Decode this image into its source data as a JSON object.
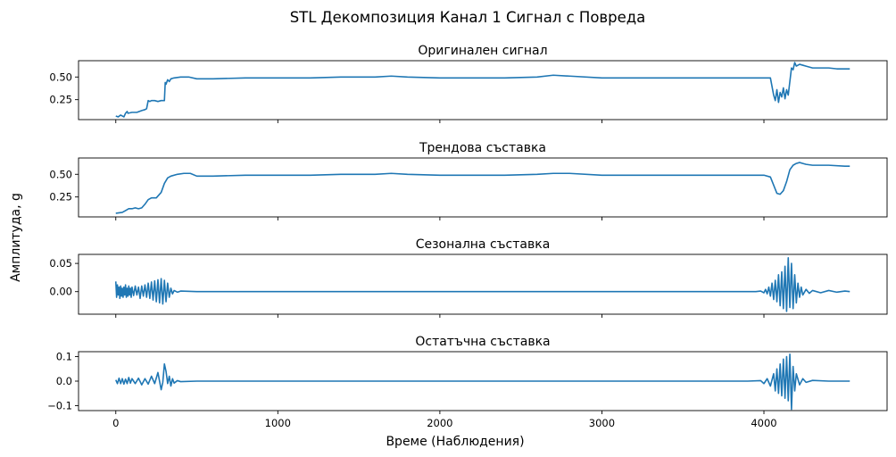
{
  "figure": {
    "title": "STL Декомпозиция Канал 1 Сигнал с Повреда",
    "ylabel": "Амплитуда, g",
    "xlabel": "Време (Наблюдения)",
    "line_color": "#1f77b4"
  },
  "chart_data": [
    {
      "type": "line",
      "title": "Оригинален сигнал",
      "xlim": [
        -230,
        4760
      ],
      "ylim": [
        0.03,
        0.68
      ],
      "yticks": [
        "0.25",
        "0.50"
      ],
      "ytick_values": [
        0.25,
        0.5
      ],
      "x": [
        0,
        15,
        30,
        50,
        60,
        70,
        75,
        100,
        130,
        160,
        180,
        190,
        200,
        210,
        220,
        240,
        260,
        280,
        300,
        305,
        310,
        320,
        330,
        340,
        360,
        400,
        450,
        500,
        600,
        800,
        1000,
        1200,
        1400,
        1600,
        1700,
        1800,
        2000,
        2200,
        2400,
        2600,
        2700,
        2800,
        3000,
        3200,
        3400,
        3600,
        3800,
        3950,
        4000,
        4040,
        4060,
        4070,
        4080,
        4090,
        4100,
        4110,
        4120,
        4130,
        4140,
        4150,
        4160,
        4170,
        4180,
        4190,
        4200,
        4220,
        4240,
        4260,
        4280,
        4300,
        4350,
        4400,
        4450,
        4500,
        4530
      ],
      "y": [
        0.07,
        0.06,
        0.08,
        0.06,
        0.1,
        0.12,
        0.1,
        0.11,
        0.11,
        0.13,
        0.14,
        0.15,
        0.24,
        0.23,
        0.24,
        0.24,
        0.23,
        0.24,
        0.24,
        0.44,
        0.42,
        0.47,
        0.45,
        0.48,
        0.49,
        0.5,
        0.5,
        0.48,
        0.48,
        0.49,
        0.49,
        0.49,
        0.5,
        0.5,
        0.51,
        0.5,
        0.49,
        0.49,
        0.49,
        0.5,
        0.52,
        0.51,
        0.49,
        0.49,
        0.49,
        0.49,
        0.49,
        0.49,
        0.49,
        0.49,
        0.3,
        0.24,
        0.36,
        0.22,
        0.33,
        0.28,
        0.38,
        0.26,
        0.36,
        0.3,
        0.45,
        0.6,
        0.58,
        0.66,
        0.62,
        0.64,
        0.63,
        0.62,
        0.61,
        0.6,
        0.6,
        0.6,
        0.59,
        0.59,
        0.59
      ]
    },
    {
      "type": "line",
      "title": "Трендова съставка",
      "xlim": [
        -230,
        4760
      ],
      "ylim": [
        0.03,
        0.68
      ],
      "yticks": [
        "0.25",
        "0.50"
      ],
      "ytick_values": [
        0.25,
        0.5
      ],
      "x": [
        0,
        40,
        60,
        80,
        100,
        120,
        140,
        160,
        180,
        200,
        220,
        250,
        280,
        300,
        320,
        340,
        380,
        420,
        460,
        500,
        600,
        800,
        1000,
        1200,
        1400,
        1600,
        1700,
        1800,
        2000,
        2200,
        2400,
        2600,
        2700,
        2800,
        3000,
        3200,
        3400,
        3600,
        3800,
        3950,
        4000,
        4040,
        4060,
        4080,
        4100,
        4120,
        4140,
        4160,
        4180,
        4200,
        4220,
        4240,
        4260,
        4300,
        4400,
        4500,
        4530
      ],
      "y": [
        0.07,
        0.08,
        0.1,
        0.12,
        0.12,
        0.13,
        0.12,
        0.13,
        0.17,
        0.22,
        0.24,
        0.24,
        0.3,
        0.4,
        0.46,
        0.48,
        0.5,
        0.51,
        0.51,
        0.48,
        0.48,
        0.49,
        0.49,
        0.49,
        0.5,
        0.5,
        0.51,
        0.5,
        0.49,
        0.49,
        0.49,
        0.5,
        0.51,
        0.51,
        0.49,
        0.49,
        0.49,
        0.49,
        0.49,
        0.49,
        0.49,
        0.47,
        0.38,
        0.29,
        0.28,
        0.32,
        0.42,
        0.55,
        0.6,
        0.62,
        0.63,
        0.62,
        0.61,
        0.6,
        0.6,
        0.59,
        0.59
      ]
    },
    {
      "type": "line",
      "title": "Сезонална съставка",
      "xlim": [
        -230,
        4760
      ],
      "ylim": [
        -0.04,
        0.066
      ],
      "yticks": [
        "0.00",
        "0.05"
      ],
      "ytick_values": [
        0,
        0.05
      ],
      "x": [
        0,
        5,
        10,
        15,
        20,
        25,
        30,
        35,
        40,
        45,
        50,
        55,
        60,
        65,
        70,
        75,
        80,
        85,
        90,
        95,
        100,
        110,
        120,
        130,
        140,
        150,
        160,
        170,
        180,
        190,
        200,
        210,
        220,
        230,
        240,
        250,
        260,
        270,
        280,
        290,
        300,
        310,
        320,
        330,
        340,
        350,
        360,
        380,
        400,
        500,
        1000,
        1500,
        2000,
        2500,
        3000,
        3500,
        3900,
        3950,
        3980,
        4000,
        4010,
        4020,
        4030,
        4040,
        4050,
        4060,
        4070,
        4080,
        4090,
        4100,
        4110,
        4120,
        4130,
        4140,
        4150,
        4160,
        4170,
        4180,
        4190,
        4200,
        4210,
        4220,
        4230,
        4240,
        4260,
        4280,
        4300,
        4350,
        4400,
        4450,
        4500,
        4530
      ],
      "y": [
        0.018,
        -0.01,
        0.012,
        -0.006,
        0.008,
        -0.012,
        0.01,
        -0.008,
        0.006,
        -0.01,
        0.008,
        -0.006,
        0.012,
        -0.01,
        0.006,
        -0.008,
        0.01,
        -0.006,
        0.006,
        -0.01,
        0.008,
        -0.007,
        0.01,
        -0.006,
        0.008,
        -0.012,
        0.01,
        -0.008,
        0.012,
        -0.01,
        0.015,
        -0.012,
        0.017,
        -0.015,
        0.019,
        -0.018,
        0.021,
        -0.02,
        0.023,
        -0.022,
        0.02,
        -0.018,
        0.015,
        -0.01,
        0.006,
        -0.004,
        0.002,
        -0.001,
        0.001,
        0,
        0,
        0,
        0,
        0,
        0,
        0,
        0,
        0,
        0.001,
        -0.002,
        0.004,
        -0.004,
        0.008,
        -0.008,
        0.015,
        -0.014,
        0.02,
        -0.018,
        0.03,
        -0.025,
        0.035,
        -0.03,
        0.045,
        -0.035,
        0.06,
        -0.028,
        0.05,
        -0.03,
        0.03,
        -0.02,
        0.015,
        -0.01,
        0.008,
        -0.006,
        0.004,
        -0.003,
        0.002,
        -0.002,
        0.002,
        -0.001,
        0.001,
        0
      ]
    },
    {
      "type": "line",
      "title": "Остатъчна съставка",
      "xlim": [
        -230,
        4760
      ],
      "ylim": [
        -0.12,
        0.12
      ],
      "yticks": [
        "−0.1",
        "0.0",
        "0.1"
      ],
      "ytick_values": [
        -0.1,
        0,
        0.1
      ],
      "x": [
        0,
        10,
        20,
        30,
        40,
        50,
        60,
        70,
        80,
        90,
        100,
        120,
        140,
        160,
        180,
        200,
        220,
        240,
        260,
        280,
        290,
        300,
        310,
        320,
        330,
        340,
        350,
        360,
        380,
        400,
        500,
        1000,
        1500,
        2000,
        2500,
        3000,
        3500,
        3900,
        3980,
        4000,
        4020,
        4040,
        4060,
        4070,
        4080,
        4090,
        4100,
        4110,
        4120,
        4130,
        4140,
        4150,
        4160,
        4170,
        4180,
        4190,
        4200,
        4220,
        4240,
        4260,
        4300,
        4400,
        4500,
        4530
      ],
      "y": [
        0.005,
        -0.01,
        0.012,
        -0.01,
        0.01,
        -0.012,
        0.008,
        -0.01,
        0.015,
        -0.008,
        0.01,
        -0.01,
        0.012,
        -0.015,
        0.01,
        -0.012,
        0.02,
        -0.01,
        0.035,
        -0.035,
        -0.005,
        0.07,
        0.04,
        -0.01,
        0.02,
        -0.02,
        0.01,
        -0.008,
        0.002,
        -0.002,
        0,
        0,
        0,
        0,
        0,
        0,
        0,
        0,
        0.002,
        -0.01,
        0.01,
        -0.02,
        0.03,
        -0.04,
        0.05,
        -0.05,
        0.07,
        -0.06,
        0.09,
        -0.07,
        0.1,
        -0.08,
        0.11,
        -0.115,
        0.06,
        -0.04,
        0.03,
        -0.015,
        0.01,
        -0.005,
        0.003,
        0,
        0,
        0
      ]
    }
  ],
  "xaxis": {
    "ticks": [
      "0",
      "1000",
      "2000",
      "3000",
      "4000"
    ],
    "tick_values": [
      0,
      1000,
      2000,
      3000,
      4000
    ]
  }
}
